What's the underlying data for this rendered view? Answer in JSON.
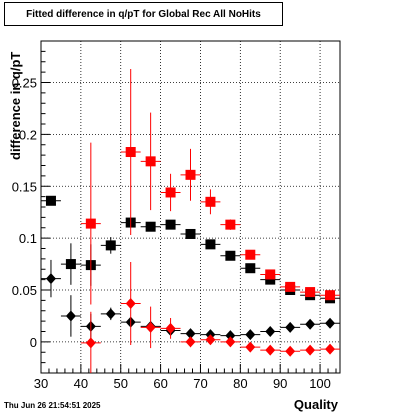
{
  "chart_data": {
    "type": "scatter",
    "title": "Fitted difference in q/pT for Global Rec All NoHits",
    "xlabel": "Quality",
    "ylabel": "difference in q/pT",
    "xlim": [
      30,
      105
    ],
    "ylim": [
      -0.03,
      0.29
    ],
    "x_ticks": [
      30,
      40,
      50,
      60,
      70,
      80,
      90,
      100
    ],
    "y_ticks": [
      0,
      0.05,
      0.1,
      0.15,
      0.2,
      0.25
    ],
    "y_tick_labels": [
      "0",
      "0.05",
      "0.1",
      "0.15",
      "0.2",
      "0.25"
    ],
    "grid": true,
    "series": [
      {
        "marker": "square",
        "color": "#000000",
        "points": [
          {
            "x": 32.5,
            "y": 0.136,
            "err": 0.004
          },
          {
            "x": 37.5,
            "y": 0.075,
            "err": 0.02
          },
          {
            "x": 42.5,
            "y": 0.074,
            "err": 0.02
          },
          {
            "x": 47.5,
            "y": 0.093,
            "err": 0.008
          },
          {
            "x": 52.5,
            "y": 0.115,
            "err": 0.004
          },
          {
            "x": 57.5,
            "y": 0.111,
            "err": 0.004
          },
          {
            "x": 62.5,
            "y": 0.113,
            "err": 0.003
          },
          {
            "x": 67.5,
            "y": 0.104,
            "err": 0.002
          },
          {
            "x": 72.5,
            "y": 0.094,
            "err": 0.002
          },
          {
            "x": 77.5,
            "y": 0.083,
            "err": 0.002
          },
          {
            "x": 82.5,
            "y": 0.071,
            "err": 0.002
          },
          {
            "x": 87.5,
            "y": 0.06,
            "err": 0.002
          },
          {
            "x": 92.5,
            "y": 0.05,
            "err": 0.002
          },
          {
            "x": 97.5,
            "y": 0.045,
            "err": 0.002
          },
          {
            "x": 102.5,
            "y": 0.042,
            "err": 0.002
          }
        ]
      },
      {
        "marker": "square",
        "color": "#ff0000",
        "points": [
          {
            "x": 42.5,
            "y": 0.114,
            "err": 0.078
          },
          {
            "x": 52.5,
            "y": 0.183,
            "err": 0.08
          },
          {
            "x": 57.5,
            "y": 0.174,
            "err": 0.047
          },
          {
            "x": 62.5,
            "y": 0.144,
            "err": 0.018
          },
          {
            "x": 67.5,
            "y": 0.161,
            "err": 0.025
          },
          {
            "x": 72.5,
            "y": 0.135,
            "err": 0.012
          },
          {
            "x": 77.5,
            "y": 0.113,
            "err": 0.005
          },
          {
            "x": 82.5,
            "y": 0.084,
            "err": 0.004
          },
          {
            "x": 87.5,
            "y": 0.065,
            "err": 0.003
          },
          {
            "x": 92.5,
            "y": 0.053,
            "err": 0.003
          },
          {
            "x": 97.5,
            "y": 0.048,
            "err": 0.003
          },
          {
            "x": 102.5,
            "y": 0.045,
            "err": 0.003
          }
        ]
      },
      {
        "marker": "diamond",
        "color": "#000000",
        "points": [
          {
            "x": 32.5,
            "y": 0.061,
            "err": 0.018
          },
          {
            "x": 37.5,
            "y": 0.025,
            "err": 0.02
          },
          {
            "x": 42.5,
            "y": 0.015,
            "err": 0.012
          },
          {
            "x": 47.5,
            "y": 0.027,
            "err": 0.006
          },
          {
            "x": 52.5,
            "y": 0.019,
            "err": 0.004
          },
          {
            "x": 57.5,
            "y": 0.015,
            "err": 0.003
          },
          {
            "x": 62.5,
            "y": 0.011,
            "err": 0.002
          },
          {
            "x": 67.5,
            "y": 0.008,
            "err": 0.002
          },
          {
            "x": 72.5,
            "y": 0.007,
            "err": 0.002
          },
          {
            "x": 77.5,
            "y": 0.006,
            "err": 0.002
          },
          {
            "x": 82.5,
            "y": 0.007,
            "err": 0.002
          },
          {
            "x": 87.5,
            "y": 0.01,
            "err": 0.002
          },
          {
            "x": 92.5,
            "y": 0.014,
            "err": 0.002
          },
          {
            "x": 97.5,
            "y": 0.017,
            "err": 0.002
          },
          {
            "x": 102.5,
            "y": 0.018,
            "err": 0.002
          }
        ]
      },
      {
        "marker": "diamond",
        "color": "#ff0000",
        "points": [
          {
            "x": 42.5,
            "y": -0.001,
            "err": 0.03
          },
          {
            "x": 52.5,
            "y": 0.037,
            "err": 0.04
          },
          {
            "x": 57.5,
            "y": 0.014,
            "err": 0.02
          },
          {
            "x": 62.5,
            "y": 0.013,
            "err": 0.01
          },
          {
            "x": 67.5,
            "y": 0.0,
            "err": 0.005
          },
          {
            "x": 72.5,
            "y": 0.002,
            "err": 0.003
          },
          {
            "x": 77.5,
            "y": 0.0,
            "err": 0.003
          },
          {
            "x": 82.5,
            "y": -0.005,
            "err": 0.002
          },
          {
            "x": 87.5,
            "y": -0.008,
            "err": 0.002
          },
          {
            "x": 92.5,
            "y": -0.009,
            "err": 0.002
          },
          {
            "x": 97.5,
            "y": -0.008,
            "err": 0.002
          },
          {
            "x": 102.5,
            "y": -0.007,
            "err": 0.002
          }
        ]
      }
    ]
  },
  "footer": {
    "date": "Thu Jun 26 21:54:51 2025"
  }
}
